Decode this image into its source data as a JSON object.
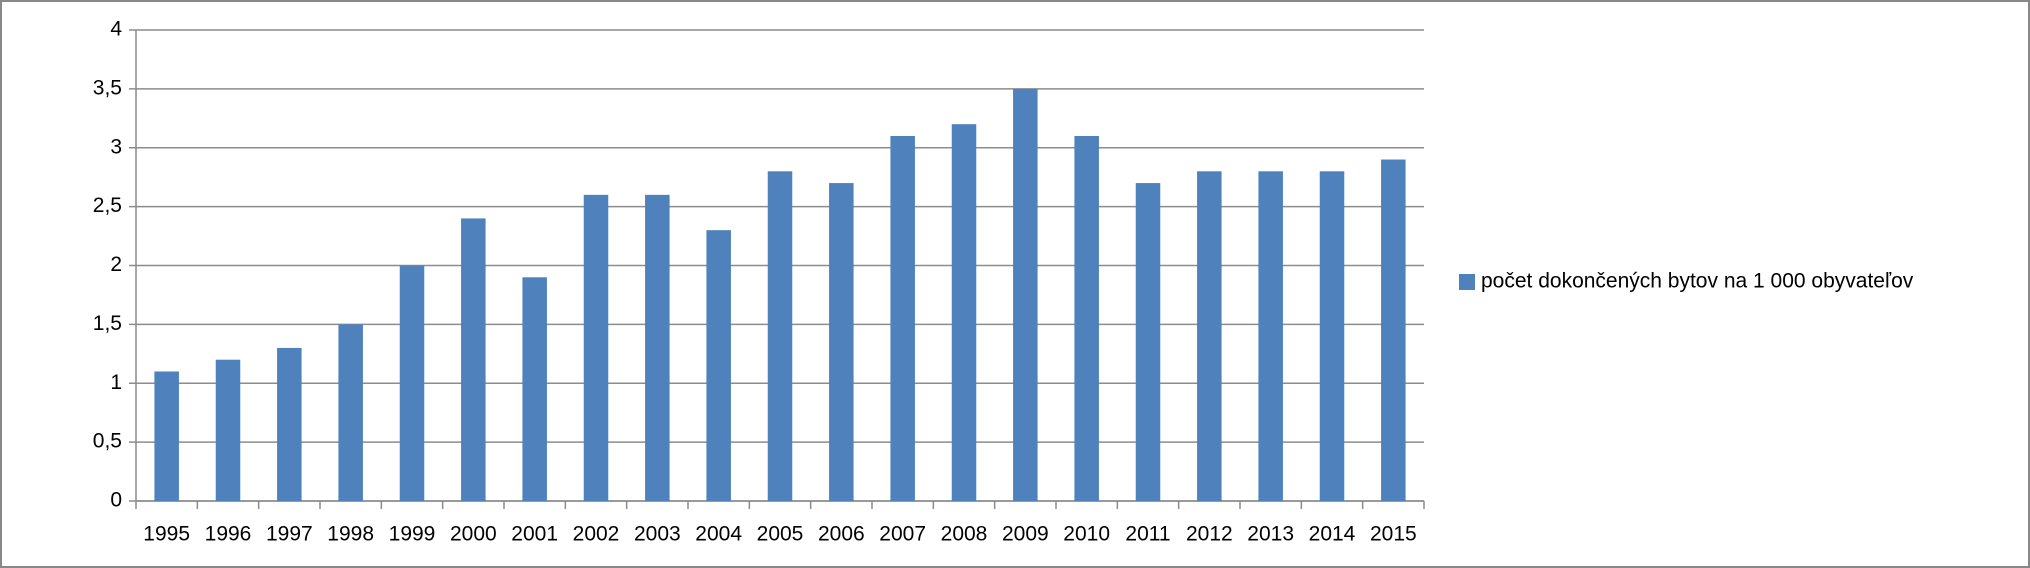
{
  "chart_data": {
    "type": "bar",
    "categories": [
      "1995",
      "1996",
      "1997",
      "1998",
      "1999",
      "2000",
      "2001",
      "2002",
      "2003",
      "2004",
      "2005",
      "2006",
      "2007",
      "2008",
      "2009",
      "2010",
      "2011",
      "2012",
      "2013",
      "2014",
      "2015"
    ],
    "series": [
      {
        "name": "počet dokončených bytov na 1 000 obyvateľov",
        "color": "#4f81bd",
        "values": [
          1.1,
          1.2,
          1.3,
          1.5,
          2.0,
          2.4,
          1.9,
          2.6,
          2.6,
          2.3,
          2.8,
          2.7,
          3.1,
          3.2,
          3.5,
          3.1,
          2.7,
          2.8,
          2.8,
          2.8,
          2.9
        ]
      }
    ],
    "ylim": [
      0,
      4
    ],
    "yticks": [
      0,
      {
        "value": 0.5,
        "label": "0,5"
      },
      1,
      {
        "value": 1.5,
        "label": "1,5"
      },
      2,
      {
        "value": 2.5,
        "label": "2,5"
      },
      3,
      {
        "value": 3.5,
        "label": "3,5"
      },
      4
    ],
    "grid": true,
    "legend": "right"
  }
}
